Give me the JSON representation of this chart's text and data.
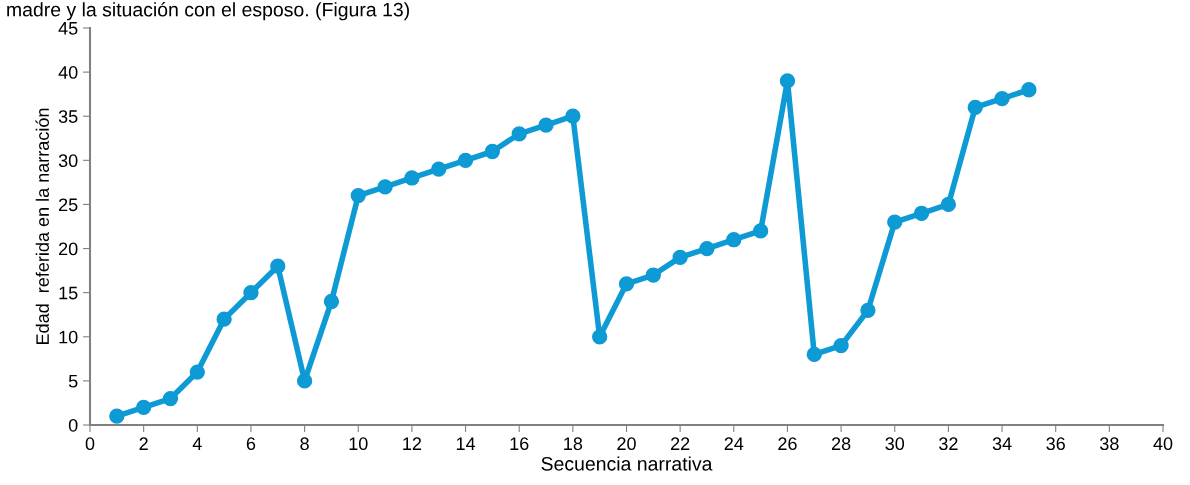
{
  "chart_data": {
    "type": "line",
    "xlabel": "Secuencia narrativa",
    "ylabel": "Edad  referida en la narración",
    "annotations": [
      "madre y la situación con el esposo. (Figura 13)"
    ],
    "x": [
      1,
      2,
      3,
      4,
      5,
      6,
      7,
      8,
      9,
      10,
      11,
      12,
      13,
      14,
      15,
      16,
      17,
      18,
      19,
      20,
      21,
      22,
      23,
      24,
      25,
      26,
      27,
      28,
      29,
      30,
      31,
      32,
      33,
      34,
      35
    ],
    "series": [
      {
        "color": "#0e9ad4",
        "values": [
          1,
          2,
          3,
          6,
          12,
          15,
          18,
          5,
          14,
          26,
          27,
          28,
          29,
          30,
          31,
          33,
          34,
          35,
          10,
          16,
          17,
          19,
          20,
          21,
          22,
          39,
          8,
          9,
          13,
          23,
          24,
          25,
          36,
          37,
          38
        ]
      }
    ],
    "xlim": [
      0,
      40
    ],
    "xticks": [
      0,
      2,
      4,
      6,
      8,
      10,
      12,
      14,
      16,
      18,
      20,
      22,
      24,
      26,
      28,
      30,
      32,
      34,
      36,
      38,
      40
    ],
    "ylim": [
      0,
      45
    ],
    "yticks": [
      0,
      5,
      10,
      15,
      20,
      25,
      30,
      35,
      40,
      45
    ],
    "grid": false,
    "marker": "circle",
    "line_style": "solid"
  }
}
